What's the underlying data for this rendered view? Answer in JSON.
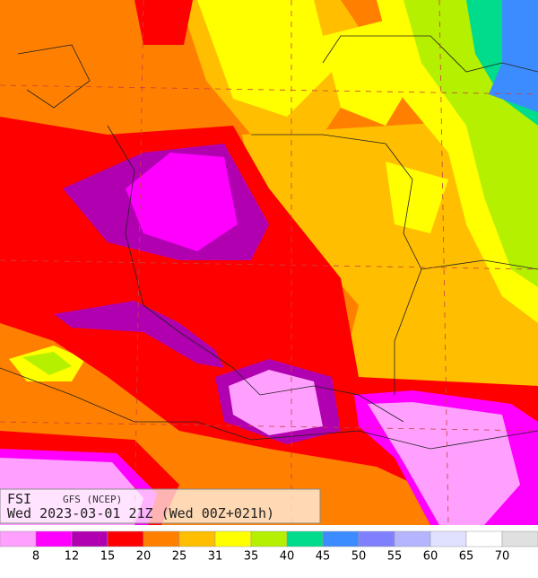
{
  "caption": {
    "field": "FSI",
    "model": "GFS (NCEP)",
    "valid": "Wed 2023-03-01 21Z (Wed 00Z+021h)"
  },
  "legend": {
    "colors": [
      "#ffa0ff",
      "#ff00ff",
      "#b000b0",
      "#ff0000",
      "#ff8000",
      "#ffbf00",
      "#ffff00",
      "#b4f000",
      "#00dc8c",
      "#3c8cff",
      "#8080ff",
      "#b4b4ff",
      "#e0e0ff",
      "#ffffff",
      "#e0e0e0"
    ],
    "labels": [
      8,
      12,
      15,
      20,
      25,
      31,
      35,
      40,
      45,
      50,
      55,
      60,
      65,
      70
    ]
  }
}
